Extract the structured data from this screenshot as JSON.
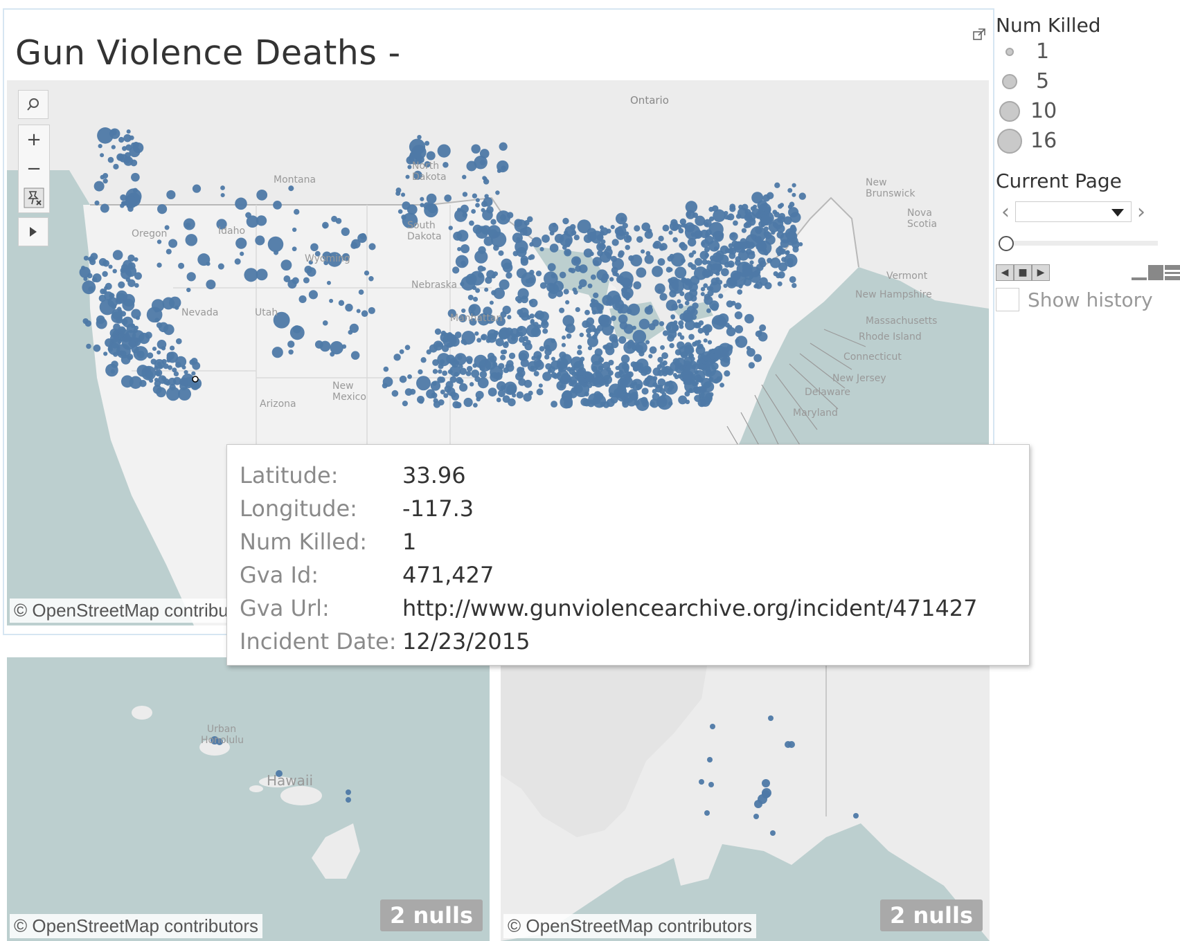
{
  "dashboard": {
    "title": "Gun Violence Deaths -"
  },
  "maps": {
    "attribution": "© OpenStreetMap contributors",
    "nulls_badge": "2 nulls",
    "dot_color": "#4e79a7",
    "land_color": "#ececec",
    "water_color": "#bccfcf",
    "us_labels": {
      "ontario": "Ontario",
      "montana": "Montana",
      "idaho": "Idaho",
      "oregon": "Oregon",
      "nevada": "Nevada",
      "utah": "Utah",
      "wyoming": "Wyoming",
      "north_dakota": "North Dakota",
      "south_dakota": "South Dakota",
      "nebraska": "Nebraska",
      "new_mexico": "New Mexico",
      "arizona": "Arizona",
      "manhattan": "Manhattan",
      "vermont": "Vermont",
      "new_hampshire": "New Hampshire",
      "massachusetts": "Massachusetts",
      "rhode_island": "Rhode Island",
      "connecticut": "Connecticut",
      "new_jersey": "New Jersey",
      "delaware": "Delaware",
      "maryland": "Maryland",
      "new_brunswick": "New Brunswick",
      "nova_scotia": "Nova Scotia"
    },
    "hi_labels": {
      "urban_honolulu": "Urban Honolulu",
      "hawaii": "Hawaii"
    }
  },
  "toolbar": {
    "search_icon": "magnifier-icon",
    "zoom_in": "+",
    "zoom_out": "−",
    "pin_icon": "pin-reset-icon",
    "expand_icon": "play-arrow-icon"
  },
  "legend": {
    "num_killed_title": "Num Killed",
    "sizes": [
      "1",
      "5",
      "10",
      "16"
    ]
  },
  "current_page": {
    "title": "Current Page",
    "selected_value": "",
    "show_history_label": "Show history",
    "show_history_checked": false
  },
  "tooltip": {
    "rows": [
      {
        "key": "Latitude:",
        "value": "33.96"
      },
      {
        "key": "Longitude:",
        "value": "-117.3"
      },
      {
        "key": "Num Killed:",
        "value": "1"
      },
      {
        "key": "Gva Id:",
        "value": "471,427"
      },
      {
        "key": "Gva Url:",
        "value": "http://www.gunviolencearchive.org/incident/471427"
      },
      {
        "key": "Incident Date:",
        "value": "12/23/2015"
      }
    ]
  }
}
